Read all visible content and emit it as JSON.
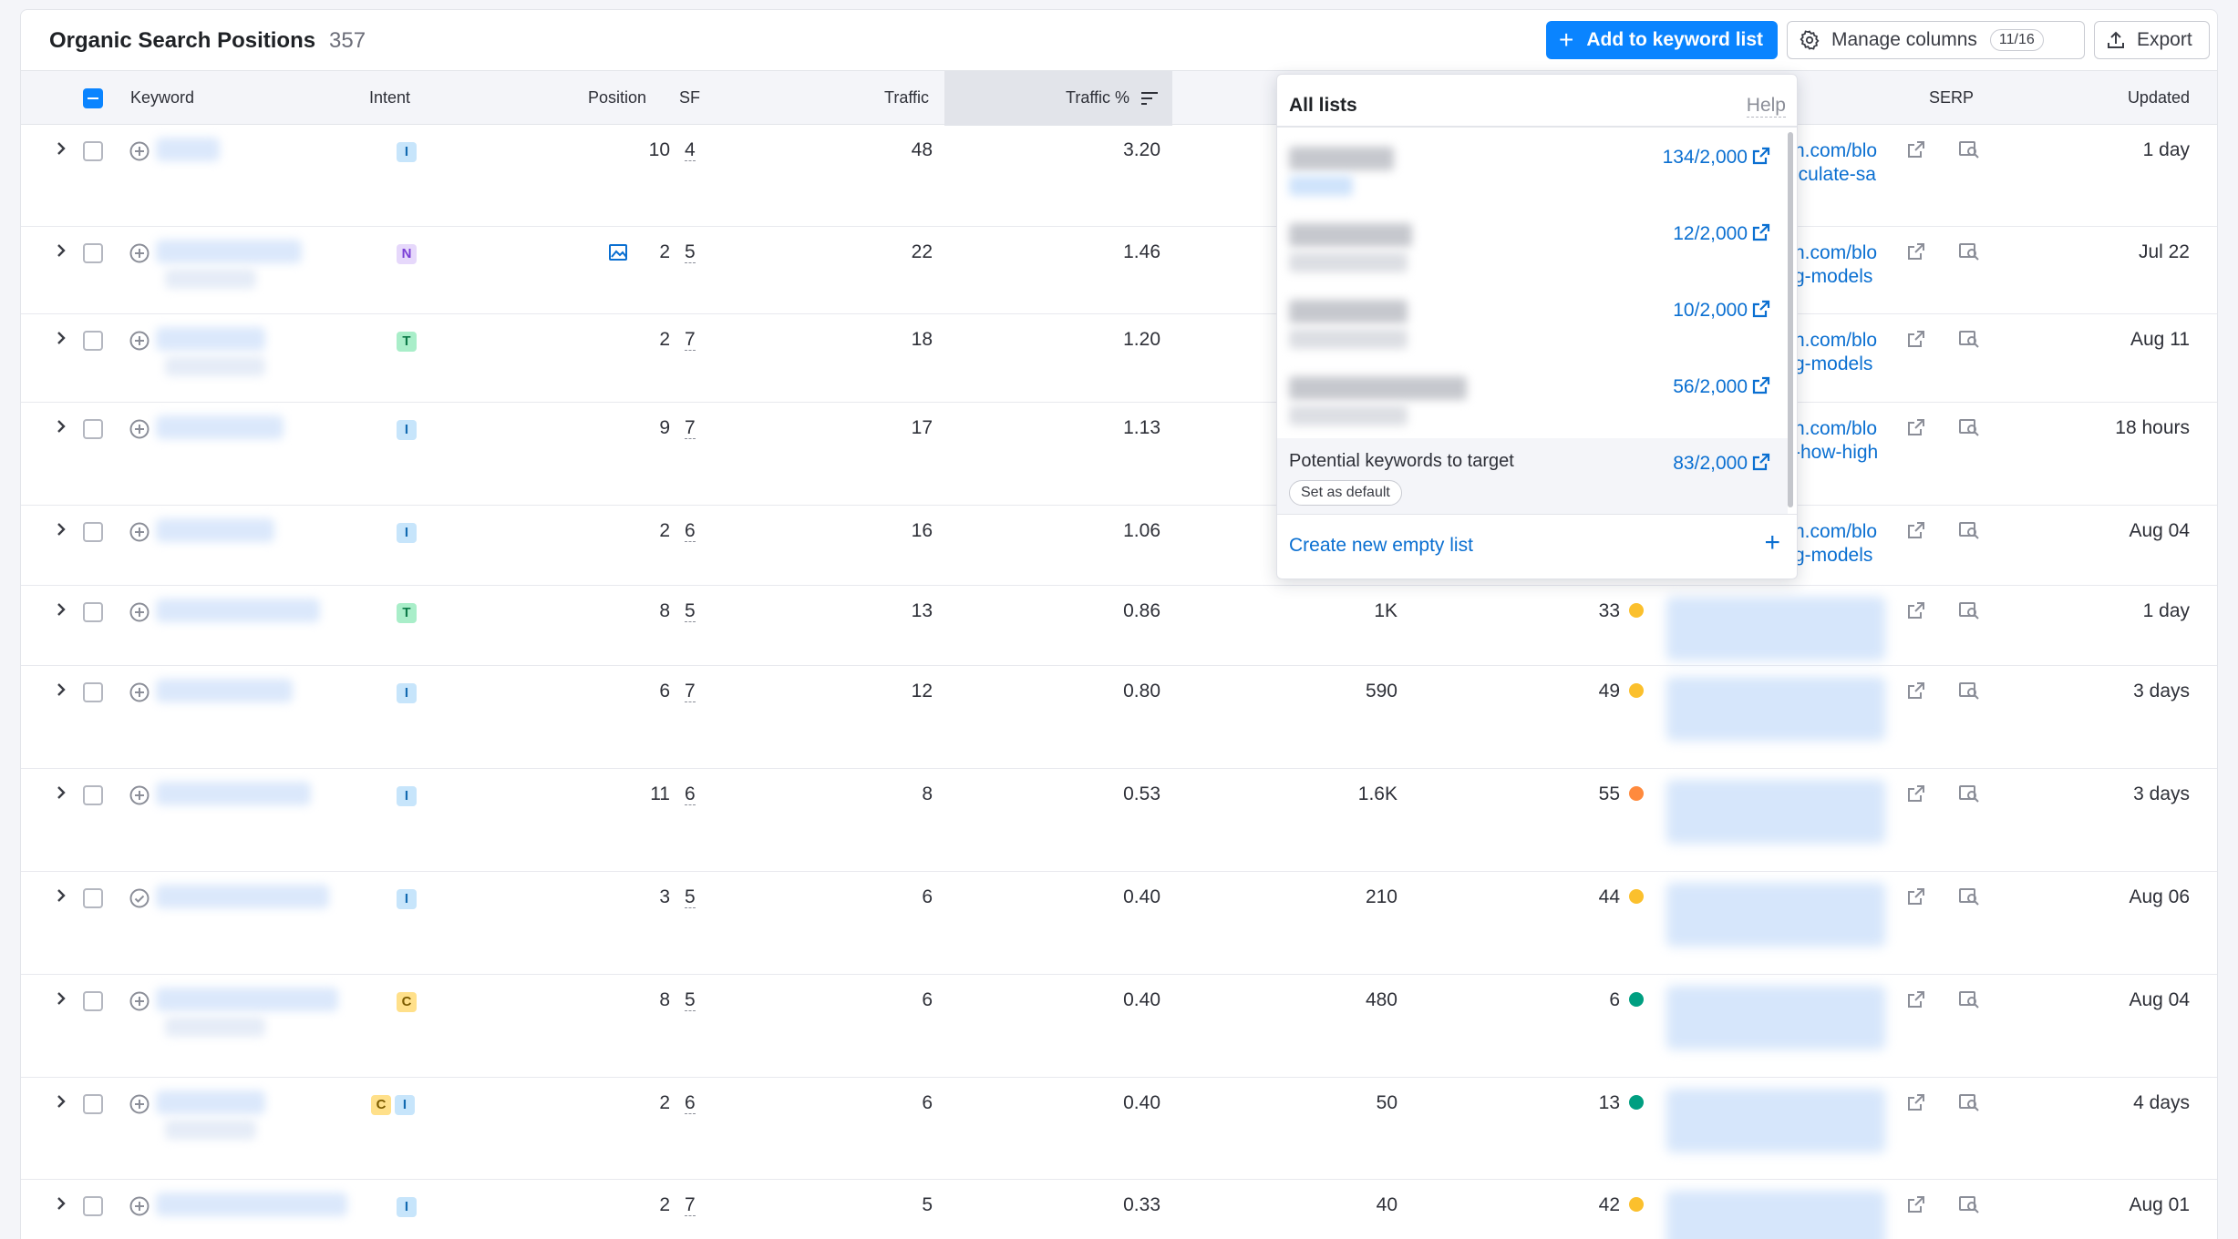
{
  "header": {
    "title": "Organic Search Positions",
    "count": "357",
    "add_button": "Add to keyword list",
    "manage_button": "Manage columns",
    "manage_badge": "11/16",
    "export_button": "Export"
  },
  "columns": {
    "keyword": "Keyword",
    "intent": "Intent",
    "position": "Position",
    "sf": "SF",
    "traffic": "Traffic",
    "traffic_pct": "Traffic %",
    "serp": "SERP",
    "updated": "Updated"
  },
  "rows": [
    {
      "intent": [
        "I"
      ],
      "position": "10",
      "sf": "4",
      "traffic": "48",
      "traffic_pct": "3.20",
      "volume": "",
      "kd": "",
      "kd_color": "",
      "url": [
        "n.com/blo",
        "lculate-sa"
      ],
      "updated": "1 day",
      "image_icon": false
    },
    {
      "intent": [
        "N"
      ],
      "position": "2",
      "sf": "5",
      "traffic": "22",
      "traffic_pct": "1.46",
      "volume": "",
      "kd": "",
      "kd_color": "",
      "url": [
        "n.com/blo",
        "g-models"
      ],
      "updated": "Jul 22",
      "image_icon": true
    },
    {
      "intent": [
        "T"
      ],
      "position": "2",
      "sf": "7",
      "traffic": "18",
      "traffic_pct": "1.20",
      "volume": "",
      "kd": "",
      "kd_color": "",
      "url": [
        "n.com/blo",
        "g-models"
      ],
      "updated": "Aug 11",
      "image_icon": false
    },
    {
      "intent": [
        "I"
      ],
      "position": "9",
      "sf": "7",
      "traffic": "17",
      "traffic_pct": "1.13",
      "volume": "",
      "kd": "",
      "kd_color": "",
      "url": [
        "n.com/blo",
        "-how-high"
      ],
      "updated": "18 hours",
      "image_icon": false
    },
    {
      "intent": [
        "I"
      ],
      "position": "2",
      "sf": "6",
      "traffic": "16",
      "traffic_pct": "1.06",
      "volume": "",
      "kd": "",
      "kd_color": "",
      "url": [
        "n.com/blo",
        "g-models"
      ],
      "updated": "Aug 04",
      "image_icon": false
    },
    {
      "intent": [
        "T"
      ],
      "position": "8",
      "sf": "5",
      "traffic": "13",
      "traffic_pct": "0.86",
      "volume": "1K",
      "kd": "33",
      "kd_color": "#fbc02d",
      "url": [],
      "updated": "1 day",
      "image_icon": false
    },
    {
      "intent": [
        "I"
      ],
      "position": "6",
      "sf": "7",
      "traffic": "12",
      "traffic_pct": "0.80",
      "volume": "590",
      "kd": "49",
      "kd_color": "#fbc02d",
      "url": [],
      "updated": "3 days",
      "image_icon": false
    },
    {
      "intent": [
        "I"
      ],
      "position": "11",
      "sf": "6",
      "traffic": "8",
      "traffic_pct": "0.53",
      "volume": "1.6K",
      "kd": "55",
      "kd_color": "#ff8a3d",
      "url": [],
      "updated": "3 days",
      "image_icon": false
    },
    {
      "intent": [
        "I"
      ],
      "position": "3",
      "sf": "5",
      "traffic": "6",
      "traffic_pct": "0.40",
      "volume": "210",
      "kd": "44",
      "kd_color": "#fbc02d",
      "url": [],
      "updated": "Aug 06",
      "image_icon": false
    },
    {
      "intent": [
        "C"
      ],
      "position": "8",
      "sf": "5",
      "traffic": "6",
      "traffic_pct": "0.40",
      "volume": "480",
      "kd": "6",
      "kd_color": "#009f81",
      "url": [],
      "updated": "Aug 04",
      "image_icon": false
    },
    {
      "intent": [
        "C",
        "I"
      ],
      "position": "2",
      "sf": "6",
      "traffic": "6",
      "traffic_pct": "0.40",
      "volume": "50",
      "kd": "13",
      "kd_color": "#009f81",
      "url": [],
      "updated": "4 days",
      "image_icon": false
    },
    {
      "intent": [
        "I"
      ],
      "position": "2",
      "sf": "7",
      "traffic": "5",
      "traffic_pct": "0.33",
      "volume": "40",
      "kd": "42",
      "kd_color": "#fbc02d",
      "url": [],
      "updated": "Aug 01",
      "image_icon": false
    }
  ],
  "dropdown": {
    "title": "All lists",
    "help": "Help",
    "items": [
      {
        "count": "134/2,000",
        "name": ""
      },
      {
        "count": "12/2,000",
        "name": ""
      },
      {
        "count": "10/2,000",
        "name": ""
      },
      {
        "count": "56/2,000",
        "name": ""
      },
      {
        "count": "83/2,000",
        "name": "Potential keywords to target"
      }
    ],
    "set_default": "Set as default",
    "create": "Create new empty list"
  },
  "colors": {
    "primary": "#0a84ff",
    "link": "#0a6fd1"
  }
}
